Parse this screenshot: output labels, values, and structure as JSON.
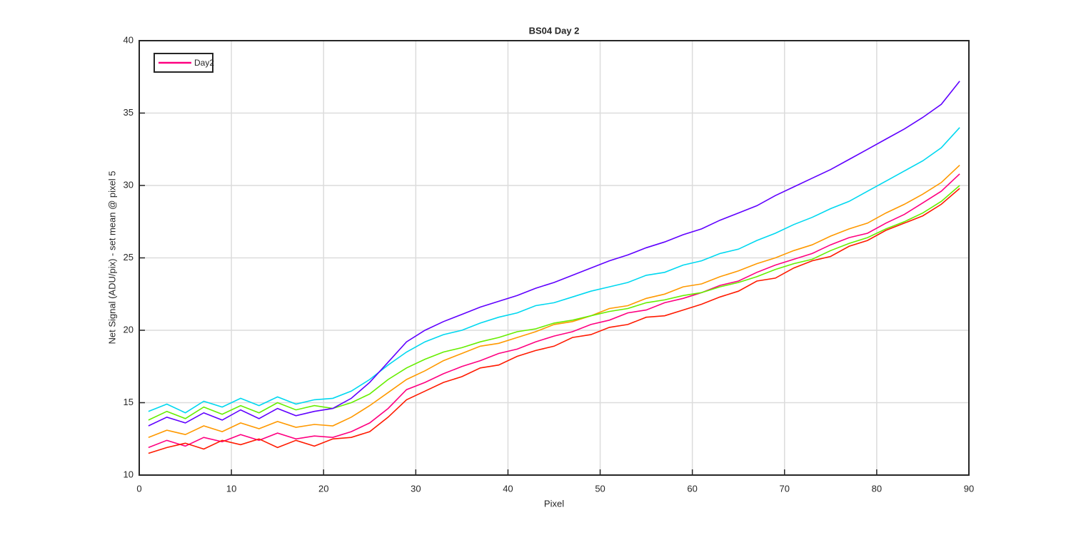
{
  "chart_data": {
    "type": "line",
    "title": "BS04 Day 2",
    "xlabel": "Pixel",
    "ylabel": "Net Signal (ADU/pix) - set mean @ pixel 5",
    "x": [
      1,
      3,
      5,
      7,
      9,
      11,
      13,
      15,
      17,
      19,
      21,
      23,
      25,
      27,
      29,
      31,
      33,
      35,
      37,
      39,
      41,
      43,
      45,
      47,
      49,
      51,
      53,
      55,
      57,
      59,
      61,
      63,
      65,
      67,
      69,
      71,
      73,
      75,
      77,
      79,
      81,
      83,
      85,
      87,
      89
    ],
    "series": [
      {
        "name": "Day2",
        "color": "#ff0080",
        "values": [
          11.9,
          12.4,
          12.0,
          12.6,
          12.3,
          12.8,
          12.4,
          12.9,
          12.5,
          12.7,
          12.6,
          13.0,
          13.6,
          14.6,
          15.9,
          16.4,
          17.0,
          17.5,
          17.9,
          18.4,
          18.7,
          19.2,
          19.6,
          19.9,
          20.4,
          20.7,
          21.2,
          21.4,
          21.9,
          22.2,
          22.6,
          23.1,
          23.4,
          24.0,
          24.5,
          24.9,
          25.3,
          25.9,
          26.4,
          26.7,
          27.4,
          28.0,
          28.8,
          29.6,
          30.8
        ]
      },
      {
        "color": "#ff1a00",
        "values": [
          11.5,
          11.9,
          12.2,
          11.8,
          12.4,
          12.1,
          12.5,
          11.9,
          12.4,
          12.0,
          12.5,
          12.6,
          13.0,
          14.0,
          15.2,
          15.8,
          16.4,
          16.8,
          17.4,
          17.6,
          18.2,
          18.6,
          18.9,
          19.5,
          19.7,
          20.2,
          20.4,
          20.9,
          21.0,
          21.4,
          21.8,
          22.3,
          22.7,
          23.4,
          23.6,
          24.3,
          24.8,
          25.1,
          25.8,
          26.2,
          26.9,
          27.4,
          27.9,
          28.7,
          29.8
        ]
      },
      {
        "color": "#ff9900",
        "values": [
          12.6,
          13.1,
          12.8,
          13.4,
          13.0,
          13.6,
          13.2,
          13.7,
          13.3,
          13.5,
          13.4,
          14.0,
          14.8,
          15.7,
          16.6,
          17.2,
          17.9,
          18.4,
          18.9,
          19.1,
          19.5,
          19.9,
          20.4,
          20.6,
          21.0,
          21.5,
          21.7,
          22.2,
          22.5,
          23.0,
          23.2,
          23.7,
          24.1,
          24.6,
          25.0,
          25.5,
          25.9,
          26.5,
          27.0,
          27.4,
          28.1,
          28.7,
          29.4,
          30.2,
          31.4
        ]
      },
      {
        "color": "#66ee00",
        "values": [
          13.8,
          14.4,
          13.9,
          14.7,
          14.2,
          14.8,
          14.3,
          15.0,
          14.5,
          14.8,
          14.6,
          15.0,
          15.6,
          16.6,
          17.4,
          18.0,
          18.5,
          18.8,
          19.2,
          19.5,
          19.9,
          20.1,
          20.5,
          20.7,
          21.0,
          21.3,
          21.5,
          21.9,
          22.1,
          22.4,
          22.6,
          23.0,
          23.3,
          23.7,
          24.2,
          24.6,
          24.9,
          25.5,
          26.0,
          26.4,
          27.0,
          27.5,
          28.1,
          28.9,
          30.0
        ]
      },
      {
        "color": "#00d8f0",
        "values": [
          14.4,
          14.9,
          14.3,
          15.1,
          14.7,
          15.3,
          14.8,
          15.4,
          14.9,
          15.2,
          15.3,
          15.8,
          16.6,
          17.6,
          18.5,
          19.2,
          19.7,
          20.0,
          20.5,
          20.9,
          21.2,
          21.7,
          21.9,
          22.3,
          22.7,
          23.0,
          23.3,
          23.8,
          24.0,
          24.5,
          24.8,
          25.3,
          25.6,
          26.2,
          26.7,
          27.3,
          27.8,
          28.4,
          28.9,
          29.6,
          30.3,
          31.0,
          31.7,
          32.6,
          34.0
        ]
      },
      {
        "color": "#6000ff",
        "values": [
          13.4,
          14.0,
          13.6,
          14.3,
          13.8,
          14.5,
          13.9,
          14.6,
          14.1,
          14.4,
          14.6,
          15.3,
          16.4,
          17.8,
          19.2,
          20.0,
          20.6,
          21.1,
          21.6,
          22.0,
          22.4,
          22.9,
          23.3,
          23.8,
          24.3,
          24.8,
          25.2,
          25.7,
          26.1,
          26.6,
          27.0,
          27.6,
          28.1,
          28.6,
          29.3,
          29.9,
          30.5,
          31.1,
          31.8,
          32.5,
          33.2,
          33.9,
          34.7,
          35.6,
          37.2
        ]
      }
    ],
    "xlim": [
      0,
      90
    ],
    "xticks": [
      0,
      10,
      20,
      30,
      40,
      50,
      60,
      70,
      80,
      90
    ],
    "ylim": [
      10,
      40
    ],
    "yticks": [
      10,
      15,
      20,
      25,
      30,
      35,
      40
    ],
    "grid": true,
    "legend": "upper left"
  }
}
